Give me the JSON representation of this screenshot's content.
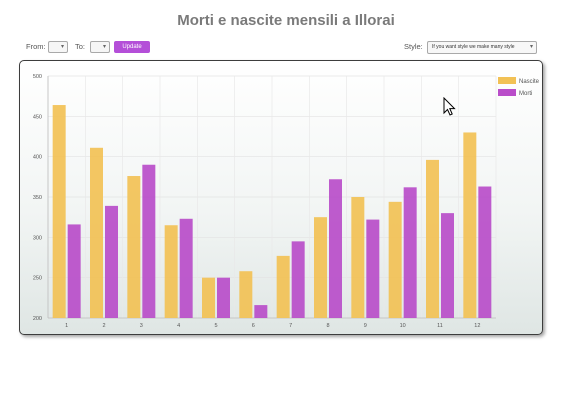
{
  "page": {
    "title": "Morti e nascite mensili a Illorai"
  },
  "controls": {
    "from_label": "From:",
    "to_label": "To:",
    "update_label": "Update",
    "style_label": "Style:",
    "style_value": "If you want style we make many style"
  },
  "colors": {
    "nascite": "#f2c155",
    "morti": "#b94dc9",
    "update_button": "#b44fd8"
  },
  "icons": {
    "cursor": "mouse-pointer-icon",
    "dropdown": "chevron-down-icon"
  },
  "chart_data": {
    "type": "bar",
    "categories": [
      "1",
      "2",
      "3",
      "4",
      "5",
      "6",
      "7",
      "8",
      "9",
      "10",
      "11",
      "12"
    ],
    "series": [
      {
        "name": "Nascite",
        "color": "#f2c155",
        "values": [
          464,
          411,
          376,
          315,
          250,
          258,
          277,
          325,
          350,
          344,
          396,
          430
        ]
      },
      {
        "name": "Morti",
        "color": "#b94dc9",
        "values": [
          316,
          339,
          390,
          323,
          250,
          216,
          295,
          372,
          322,
          362,
          330,
          363
        ]
      }
    ],
    "ylim": [
      200,
      500
    ],
    "yticks": [
      200,
      250,
      300,
      350,
      400,
      450,
      500
    ],
    "grid": true,
    "legend_position": "top-right"
  }
}
